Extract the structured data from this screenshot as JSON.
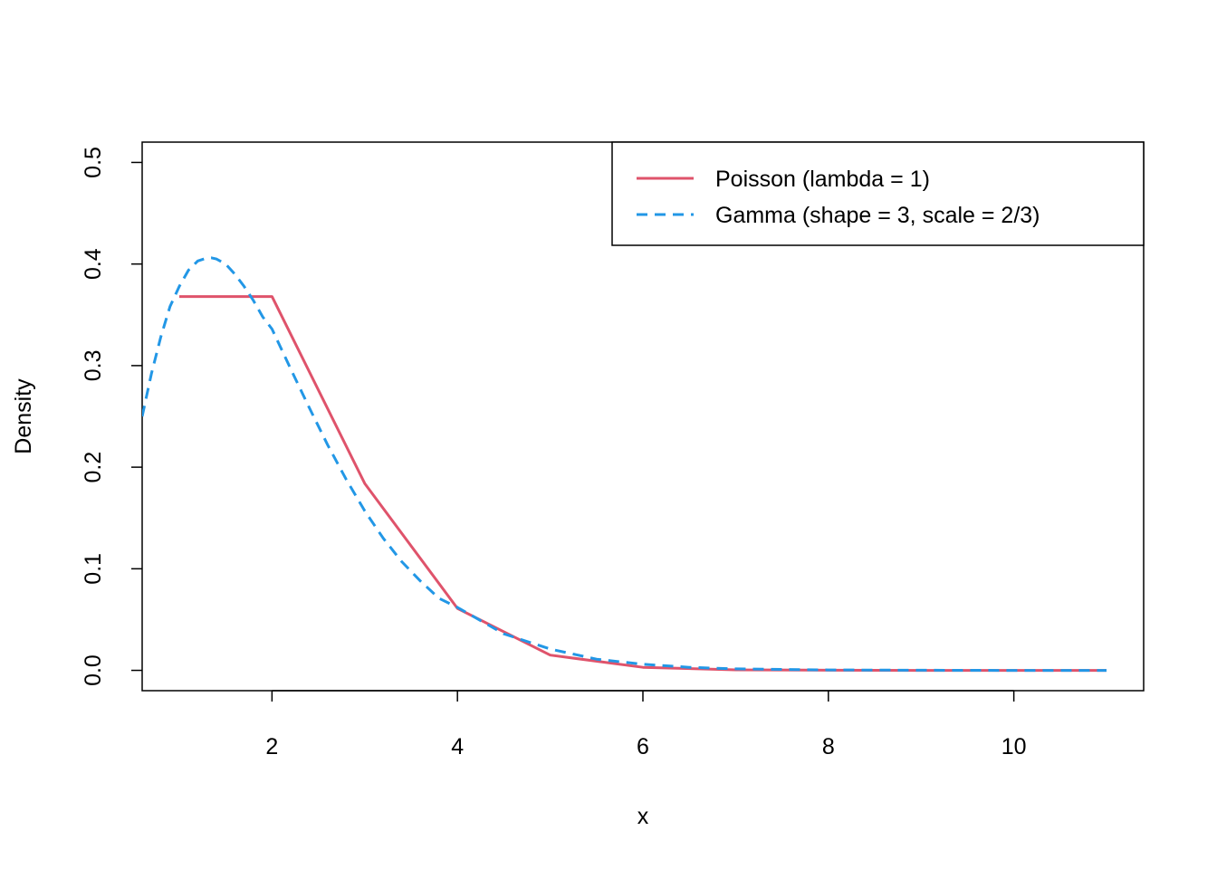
{
  "chart_data": {
    "type": "line",
    "title": "",
    "xlabel": "x",
    "ylabel": "Density",
    "xlim": [
      0.6,
      11.4
    ],
    "ylim": [
      -0.02,
      0.52
    ],
    "x_ticks": [
      2,
      4,
      6,
      8,
      10
    ],
    "x_tick_labels": [
      "2",
      "4",
      "6",
      "8",
      "10"
    ],
    "y_ticks": [
      0.0,
      0.1,
      0.2,
      0.3,
      0.4,
      0.5
    ],
    "y_tick_labels": [
      "0.0",
      "0.1",
      "0.2",
      "0.3",
      "0.4",
      "0.5"
    ],
    "grid": false,
    "legend_position": "top-right",
    "series": [
      {
        "name": "Poisson (lambda = 1)",
        "color": "#DF536B",
        "line_style": "solid",
        "x": [
          1,
          2,
          3,
          4,
          5,
          6,
          7,
          8,
          9,
          10,
          11
        ],
        "y": [
          0.368,
          0.368,
          0.184,
          0.061,
          0.015,
          0.003,
          0.0005,
          0.0001,
          0.0,
          0.0,
          0.0
        ]
      },
      {
        "name": "Gamma (shape = 3, scale = 2/3)",
        "color": "#2297E6",
        "line_style": "dashed",
        "x": [
          0.6,
          0.7,
          0.8,
          0.9,
          1.0,
          1.1,
          1.2,
          1.3,
          1.35,
          1.4,
          1.5,
          1.6,
          1.7,
          1.8,
          1.9,
          2.0,
          2.2,
          2.4,
          2.6,
          2.8,
          3.0,
          3.2,
          3.4,
          3.6,
          3.8,
          4.0,
          4.5,
          5.0,
          5.5,
          6.0,
          6.5,
          7.0,
          8.0,
          9.0,
          10.0,
          11.0
        ],
        "y": [
          0.25,
          0.292,
          0.328,
          0.358,
          0.378,
          0.394,
          0.403,
          0.406,
          0.406,
          0.405,
          0.4,
          0.39,
          0.378,
          0.364,
          0.348,
          0.336,
          0.297,
          0.259,
          0.222,
          0.188,
          0.157,
          0.13,
          0.107,
          0.088,
          0.071,
          0.062,
          0.036,
          0.021,
          0.011,
          0.006,
          0.003,
          0.0015,
          0.0004,
          0.0001,
          0.0,
          0.0
        ]
      }
    ]
  }
}
